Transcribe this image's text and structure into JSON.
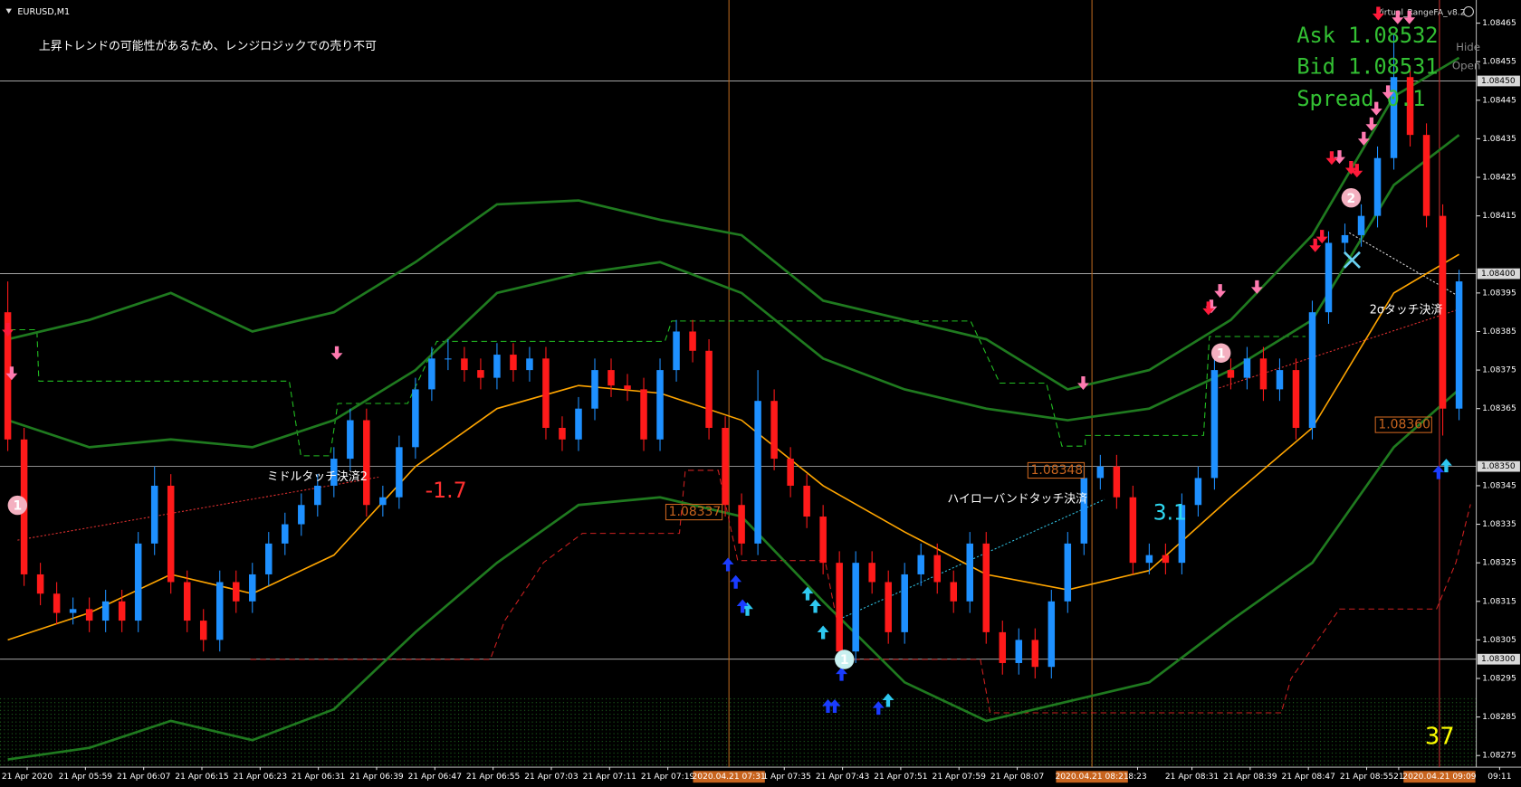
{
  "chart_data": {
    "type": "candlestick",
    "symbol": "EURUSD,M1",
    "message": "上昇トレンドの可能性があるため、レンジロジックでの売り不可",
    "indicator": "Virtual_RangeFA_v8.2",
    "info": [
      "Ask 1.08532",
      "Bid 1.08531",
      "Spread 0.1"
    ],
    "buttons": [
      "Hide",
      "Open"
    ],
    "up_color": "#1e90ff",
    "down_color": "#ff1a1a",
    "ylim": [
      1.08272,
      1.08471
    ],
    "yticks": [
      1.08465,
      1.08455,
      1.08445,
      1.08435,
      1.08425,
      1.08415,
      1.08395,
      1.08385,
      1.08375,
      1.08365,
      1.08345,
      1.08335,
      1.08325,
      1.08315,
      1.08305,
      1.08295,
      1.08285,
      1.08275
    ],
    "price_lines": [
      {
        "value": 1.0845,
        "label": "1.08450"
      },
      {
        "value": 1.084,
        "label": "1.08400"
      },
      {
        "value": 1.0835,
        "label": "1.08350"
      },
      {
        "value": 1.083,
        "label": "1.08300"
      }
    ],
    "open": [
      1.0839,
      1.08357,
      1.08322,
      1.08317,
      1.08312,
      1.08313,
      1.0831,
      1.08315,
      1.0831,
      1.0833,
      1.08345,
      1.0832,
      1.0831,
      1.08305,
      1.0832,
      1.08315,
      1.08322,
      1.0833,
      1.08335,
      1.0834,
      1.08345,
      1.08352,
      1.08362,
      1.0834,
      1.08342,
      1.08355,
      1.0837,
      1.08378,
      1.08378,
      1.08375,
      1.08373,
      1.08379,
      1.08375,
      1.08378,
      1.0836,
      1.08357,
      1.08365,
      1.08375,
      1.08371,
      1.0837,
      1.08357,
      1.08375,
      1.08385,
      1.0838,
      1.0836,
      1.0834,
      1.0833,
      1.08367,
      1.08352,
      1.08345,
      1.08337,
      1.08325,
      1.08302,
      1.08325,
      1.0832,
      1.08307,
      1.08322,
      1.08327,
      1.0832,
      1.08315,
      1.0833,
      1.08307,
      1.08299,
      1.08305,
      1.08298,
      1.08315,
      1.0833,
      1.08347,
      1.0835,
      1.08342,
      1.08325,
      1.08327,
      1.08325,
      1.0834,
      1.08347,
      1.08375,
      1.08373,
      1.08378,
      1.0837,
      1.08375,
      1.0836,
      1.0839,
      1.08408,
      1.0841,
      1.08415,
      1.0843,
      1.08451,
      1.08436,
      1.08415,
      1.08365
    ],
    "high": [
      1.08398,
      1.0836,
      1.08325,
      1.0832,
      1.08316,
      1.08316,
      1.08318,
      1.08318,
      1.08333,
      1.0835,
      1.08348,
      1.08323,
      1.08313,
      1.08323,
      1.08323,
      1.08325,
      1.08333,
      1.08338,
      1.08343,
      1.08348,
      1.08355,
      1.08365,
      1.08365,
      1.08345,
      1.08358,
      1.08373,
      1.08381,
      1.08383,
      1.08381,
      1.08378,
      1.08382,
      1.08382,
      1.08381,
      1.08381,
      1.08363,
      1.08368,
      1.08378,
      1.08378,
      1.08374,
      1.08373,
      1.08378,
      1.08388,
      1.08388,
      1.08383,
      1.08363,
      1.08343,
      1.08375,
      1.0837,
      1.08355,
      1.08348,
      1.0834,
      1.08328,
      1.08328,
      1.08328,
      1.08323,
      1.08325,
      1.0833,
      1.0833,
      1.08323,
      1.08333,
      1.08333,
      1.0831,
      1.08308,
      1.08308,
      1.08318,
      1.08333,
      1.0835,
      1.08353,
      1.08353,
      1.08345,
      1.0833,
      1.0833,
      1.08343,
      1.0835,
      1.08378,
      1.08378,
      1.08381,
      1.08381,
      1.08378,
      1.08378,
      1.08393,
      1.08411,
      1.08413,
      1.08418,
      1.08433,
      1.08462,
      1.08454,
      1.08439,
      1.08418,
      1.08401
    ],
    "low": [
      1.08354,
      1.08319,
      1.08314,
      1.08309,
      1.08309,
      1.08307,
      1.08307,
      1.08307,
      1.08307,
      1.08327,
      1.08317,
      1.08307,
      1.08302,
      1.08302,
      1.08312,
      1.08312,
      1.08319,
      1.08327,
      1.08332,
      1.08337,
      1.08342,
      1.08349,
      1.08337,
      1.08337,
      1.08339,
      1.08352,
      1.08367,
      1.08375,
      1.08372,
      1.0837,
      1.0837,
      1.08372,
      1.08372,
      1.08357,
      1.08354,
      1.08354,
      1.08362,
      1.08368,
      1.08367,
      1.08354,
      1.08354,
      1.08372,
      1.08377,
      1.08357,
      1.08337,
      1.08327,
      1.08327,
      1.08349,
      1.08342,
      1.08334,
      1.08322,
      1.08299,
      1.08299,
      1.08317,
      1.08304,
      1.08304,
      1.08319,
      1.08317,
      1.08312,
      1.08312,
      1.08304,
      1.08296,
      1.08296,
      1.08295,
      1.08295,
      1.08312,
      1.08327,
      1.08344,
      1.08339,
      1.08322,
      1.08322,
      1.08322,
      1.08322,
      1.08337,
      1.08344,
      1.0837,
      1.0837,
      1.08367,
      1.08367,
      1.08357,
      1.08357,
      1.08387,
      1.08405,
      1.08407,
      1.08412,
      1.08427,
      1.08433,
      1.08412,
      1.08358,
      1.08362
    ],
    "close": [
      1.08357,
      1.08322,
      1.08317,
      1.08312,
      1.08313,
      1.0831,
      1.08315,
      1.0831,
      1.0833,
      1.08345,
      1.0832,
      1.0831,
      1.08305,
      1.0832,
      1.08315,
      1.08322,
      1.0833,
      1.08335,
      1.0834,
      1.08345,
      1.08352,
      1.08362,
      1.0834,
      1.08342,
      1.08355,
      1.0837,
      1.08378,
      1.08378,
      1.08375,
      1.08373,
      1.08379,
      1.08375,
      1.08378,
      1.0836,
      1.08357,
      1.08365,
      1.08375,
      1.08371,
      1.0837,
      1.08357,
      1.08375,
      1.08385,
      1.0838,
      1.0836,
      1.0834,
      1.0833,
      1.08367,
      1.08352,
      1.08345,
      1.08337,
      1.08325,
      1.08302,
      1.08325,
      1.0832,
      1.08307,
      1.08322,
      1.08327,
      1.0832,
      1.08315,
      1.0833,
      1.08307,
      1.08299,
      1.08305,
      1.08298,
      1.08315,
      1.0833,
      1.08347,
      1.0835,
      1.08342,
      1.08325,
      1.08327,
      1.08325,
      1.0834,
      1.08347,
      1.08375,
      1.08373,
      1.08378,
      1.0837,
      1.08375,
      1.0836,
      1.0839,
      1.08408,
      1.0841,
      1.08415,
      1.0843,
      1.08451,
      1.08436,
      1.08415,
      1.08365,
      1.08398
    ],
    "lines": [
      {
        "color": "#ffa500",
        "x": [
          0,
          5,
          10,
          15,
          20,
          25,
          30,
          35,
          40,
          45,
          50,
          55,
          60,
          65,
          70,
          75,
          80,
          85,
          89
        ],
        "values": [
          1.08305,
          1.08312,
          1.08322,
          1.08317,
          1.08327,
          1.0835,
          1.08365,
          1.08371,
          1.08369,
          1.08362,
          1.08345,
          1.08333,
          1.08322,
          1.08318,
          1.08323,
          1.08342,
          1.0836,
          1.08395,
          1.08405
        ]
      },
      {
        "color": "#1f7a1f",
        "x": [
          0,
          5,
          10,
          15,
          20,
          25,
          30,
          35,
          40,
          45,
          50,
          55,
          60,
          65,
          70,
          75,
          80,
          85,
          89
        ],
        "values": [
          1.08383,
          1.08388,
          1.08395,
          1.08385,
          1.0839,
          1.08403,
          1.08418,
          1.08419,
          1.08414,
          1.0841,
          1.08393,
          1.08388,
          1.08383,
          1.0837,
          1.08375,
          1.08388,
          1.0841,
          1.08446,
          1.08456
        ]
      },
      {
        "color": "#1f7a1f",
        "x": [
          0,
          5,
          10,
          15,
          20,
          25,
          30,
          35,
          40,
          45,
          50,
          55,
          60,
          65,
          70,
          75,
          80,
          85,
          89
        ],
        "values": [
          1.08362,
          1.08355,
          1.08357,
          1.08355,
          1.08362,
          1.08375,
          1.08395,
          1.084,
          1.08403,
          1.08395,
          1.08378,
          1.0837,
          1.08365,
          1.08362,
          1.08365,
          1.08375,
          1.08388,
          1.08423,
          1.08436
        ]
      },
      {
        "color": "#1f7a1f",
        "x": [
          0,
          5,
          10,
          15,
          20,
          25,
          30,
          35,
          40,
          45,
          50,
          55,
          60,
          65,
          70,
          75,
          80,
          85,
          89
        ],
        "values": [
          1.08274,
          1.08277,
          1.08284,
          1.08279,
          1.08287,
          1.08307,
          1.08325,
          1.0834,
          1.08342,
          1.08337,
          1.08315,
          1.08294,
          1.08284,
          1.08289,
          1.08294,
          1.0831,
          1.08325,
          1.08355,
          1.0837
        ]
      }
    ],
    "time_labels": [
      "21 Apr 2020",
      "21 Apr 05:59",
      "21 Apr 06:07",
      "21 Apr 06:15",
      "21 Apr 06:23",
      "21 Apr 06:31",
      "21 Apr 06:39",
      "21 Apr 06:47",
      "21 Apr 06:55",
      "21 Apr 07:03",
      "21 Apr 07:11",
      "21 Apr 07:19",
      "21 Apr 07:35",
      "21 Apr 07:43",
      "21 Apr 07:51",
      "21 Apr 07:59",
      "21 Apr 08:07",
      "8:23",
      "21 Apr 08:31",
      "21 Apr 08:39",
      "21 Apr 08:47",
      "21 Apr 08:55",
      "21",
      "09:11"
    ],
    "time_markers": [
      "2020.04.21 07:31",
      "2020.04.21 08:21",
      "2020.04.21 09:09"
    ],
    "annotations": [
      "ミドルタッチ決済2",
      "-1.7",
      "1.08337",
      "1.08348",
      "ハイローバンドタッチ決済",
      "3.1",
      "2σタッチ決済",
      "1.08360",
      "37"
    ],
    "signal_labels": [
      "1",
      "1",
      "1",
      "2"
    ]
  }
}
